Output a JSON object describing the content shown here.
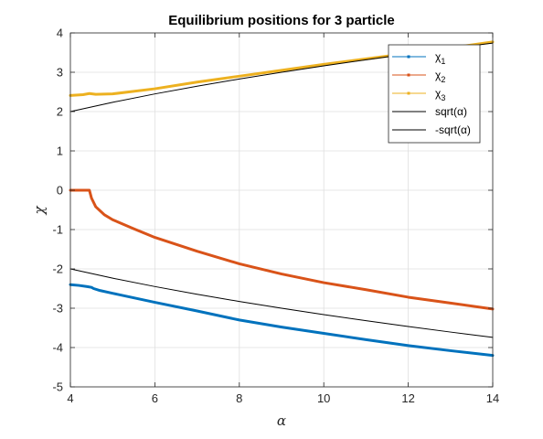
{
  "chart_data": {
    "type": "line",
    "title": "Equilibrium positions for 3 particle",
    "xlabel": "α",
    "ylabel": "χ",
    "xlim": [
      4,
      14
    ],
    "ylim": [
      -5,
      4
    ],
    "xticks": [
      4,
      6,
      8,
      10,
      12,
      14
    ],
    "yticks": [
      -5,
      -4,
      -3,
      -2,
      -1,
      0,
      1,
      2,
      3,
      4
    ],
    "xtick_labels": [
      "4",
      "6",
      "8",
      "10",
      "12",
      "14"
    ],
    "ytick_labels": [
      "-5",
      "-4",
      "-3",
      "-2",
      "-1",
      "0",
      "1",
      "2",
      "3",
      "4"
    ],
    "grid": true,
    "legend_position": "top-right",
    "series": [
      {
        "legend": {
          "base": "χ",
          "sub": "1"
        },
        "color": "#0072BD",
        "style": "thick",
        "points": [
          [
            4,
            -2.4
          ],
          [
            4.2,
            -2.42
          ],
          [
            4.4,
            -2.45
          ],
          [
            4.5,
            -2.47
          ],
          [
            4.55,
            -2.5
          ],
          [
            4.7,
            -2.55
          ],
          [
            5,
            -2.62
          ],
          [
            6,
            -2.85
          ],
          [
            7,
            -3.07
          ],
          [
            8,
            -3.3
          ],
          [
            9,
            -3.48
          ],
          [
            10,
            -3.64
          ],
          [
            11,
            -3.8
          ],
          [
            12,
            -3.95
          ],
          [
            13,
            -4.08
          ],
          [
            14,
            -4.2
          ]
        ]
      },
      {
        "legend": {
          "base": "χ",
          "sub": "2"
        },
        "color": "#D95319",
        "style": "thick",
        "points": [
          [
            4,
            0
          ],
          [
            4.45,
            0
          ],
          [
            4.5,
            -0.2
          ],
          [
            4.6,
            -0.42
          ],
          [
            4.8,
            -0.62
          ],
          [
            5,
            -0.75
          ],
          [
            5.5,
            -0.98
          ],
          [
            6,
            -1.2
          ],
          [
            7,
            -1.55
          ],
          [
            8,
            -1.87
          ],
          [
            9,
            -2.13
          ],
          [
            10,
            -2.35
          ],
          [
            11,
            -2.53
          ],
          [
            12,
            -2.72
          ],
          [
            13,
            -2.87
          ],
          [
            14,
            -3.02
          ]
        ]
      },
      {
        "legend": {
          "base": "χ",
          "sub": "3"
        },
        "color": "#EDB120",
        "style": "thick",
        "points": [
          [
            4,
            2.41
          ],
          [
            4.3,
            2.43
          ],
          [
            4.45,
            2.46
          ],
          [
            4.6,
            2.44
          ],
          [
            5,
            2.45
          ],
          [
            6,
            2.58
          ],
          [
            7,
            2.75
          ],
          [
            8,
            2.9
          ],
          [
            9,
            3.05
          ],
          [
            10,
            3.2
          ],
          [
            11,
            3.34
          ],
          [
            12,
            3.48
          ],
          [
            13,
            3.62
          ],
          [
            14,
            3.77
          ]
        ]
      },
      {
        "legend": {
          "base": "sqrt(α)"
        },
        "color": "#000000",
        "style": "thin",
        "points": [
          [
            4,
            2
          ],
          [
            5,
            2.236
          ],
          [
            6,
            2.449
          ],
          [
            7,
            2.646
          ],
          [
            8,
            2.828
          ],
          [
            9,
            3
          ],
          [
            10,
            3.162
          ],
          [
            11,
            3.317
          ],
          [
            12,
            3.464
          ],
          [
            13,
            3.606
          ],
          [
            14,
            3.742
          ]
        ]
      },
      {
        "legend": {
          "base": "-sqrt(α)"
        },
        "color": "#000000",
        "style": "thin",
        "points": [
          [
            4,
            -2
          ],
          [
            5,
            -2.236
          ],
          [
            6,
            -2.449
          ],
          [
            7,
            -2.646
          ],
          [
            8,
            -2.828
          ],
          [
            9,
            -3
          ],
          [
            10,
            -3.162
          ],
          [
            11,
            -3.317
          ],
          [
            12,
            -3.464
          ],
          [
            13,
            -3.606
          ],
          [
            14,
            -3.742
          ]
        ]
      }
    ]
  }
}
